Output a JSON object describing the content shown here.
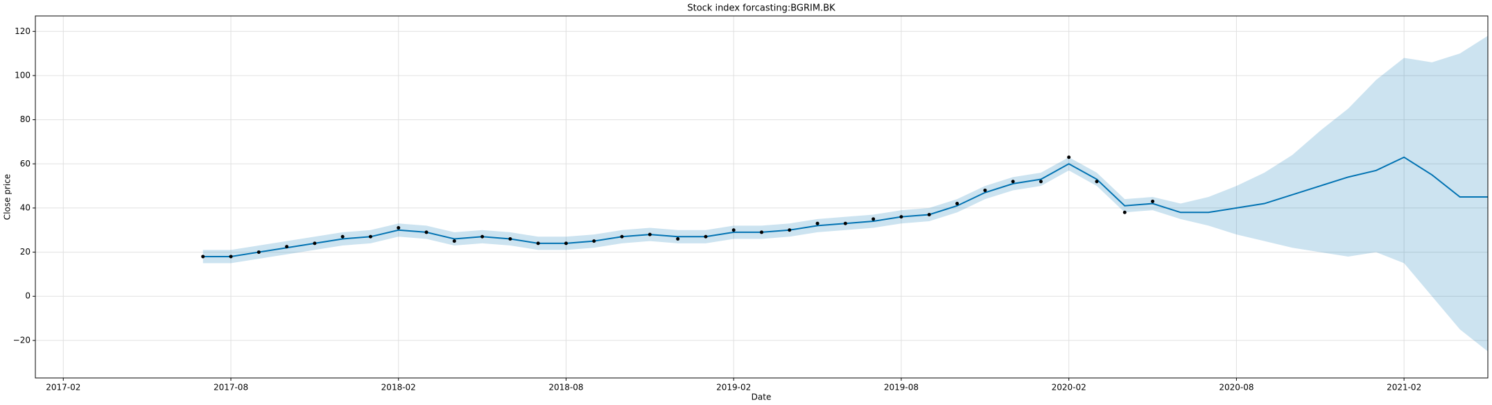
{
  "chart_data": {
    "type": "line",
    "title": "Stock index forcasting:BGRIM.BK",
    "xlabel": "Date",
    "ylabel": "Close price",
    "x": [
      "2017-07",
      "2017-08",
      "2017-09",
      "2017-10",
      "2017-11",
      "2017-12",
      "2018-01",
      "2018-02",
      "2018-03",
      "2018-04",
      "2018-05",
      "2018-06",
      "2018-07",
      "2018-08",
      "2018-09",
      "2018-10",
      "2018-11",
      "2018-12",
      "2019-01",
      "2019-02",
      "2019-03",
      "2019-04",
      "2019-05",
      "2019-06",
      "2019-07",
      "2019-08",
      "2019-09",
      "2019-10",
      "2019-11",
      "2019-12",
      "2020-01",
      "2020-02",
      "2020-03",
      "2020-04",
      "2020-05",
      "2020-06",
      "2020-07",
      "2020-08",
      "2020-09",
      "2020-10",
      "2020-11",
      "2020-12",
      "2021-01",
      "2021-02",
      "2021-03",
      "2021-04",
      "2021-05"
    ],
    "series": [
      {
        "style": "line",
        "color": "#0072B2",
        "values": [
          18,
          18,
          20,
          22,
          24,
          26,
          27,
          30,
          29,
          26,
          27,
          26,
          24,
          24,
          25,
          27,
          28,
          27,
          27,
          29,
          29,
          30,
          32,
          33,
          34,
          36,
          37,
          41,
          47,
          51,
          53,
          60,
          53,
          41,
          42,
          38,
          38,
          40,
          42,
          46,
          50,
          54,
          57,
          63,
          55,
          45,
          45
        ]
      },
      {
        "style": "dots",
        "color": "#000000",
        "values": [
          18,
          18,
          20,
          22.5,
          24,
          27,
          27,
          31,
          29,
          25,
          27,
          26,
          24,
          24,
          25,
          27,
          28,
          26,
          27,
          30,
          29,
          30,
          33,
          33,
          35,
          36,
          37,
          42,
          48,
          52,
          52,
          63,
          52,
          38,
          43,
          null,
          null,
          null,
          null,
          null,
          null,
          null,
          null,
          null,
          null,
          null,
          null
        ]
      }
    ],
    "band": {
      "color": "#0072B2",
      "opacity": 0.2,
      "lower": [
        15,
        15,
        17,
        19,
        21,
        23,
        24,
        27,
        26,
        23,
        24,
        23,
        21,
        21,
        22,
        24,
        25,
        24,
        24,
        26,
        26,
        27,
        29,
        30,
        31,
        33,
        34,
        38,
        44,
        48,
        50,
        57,
        50,
        38,
        39,
        35,
        32,
        28,
        25,
        22,
        20,
        18,
        20,
        15,
        0,
        -15,
        -25
      ],
      "upper": [
        21,
        21,
        23,
        25,
        27,
        29,
        30,
        33,
        32,
        29,
        30,
        29,
        27,
        27,
        28,
        30,
        31,
        30,
        30,
        32,
        32,
        33,
        35,
        36,
        37,
        39,
        40,
        44,
        50,
        54,
        56,
        63,
        56,
        44,
        45,
        42,
        45,
        50,
        56,
        64,
        75,
        85,
        98,
        108,
        106,
        110,
        118
      ]
    },
    "xlim": [
      "2017-01",
      "2021-05"
    ],
    "xticks": [
      "2017-02",
      "2017-08",
      "2018-02",
      "2018-08",
      "2019-02",
      "2019-08",
      "2020-02",
      "2020-08",
      "2021-02"
    ],
    "ylim": [
      -37,
      127
    ],
    "yticks": [
      {
        "value": -20,
        "label": "−20"
      },
      0,
      20,
      40,
      60,
      80,
      100,
      120
    ],
    "grid": true
  }
}
